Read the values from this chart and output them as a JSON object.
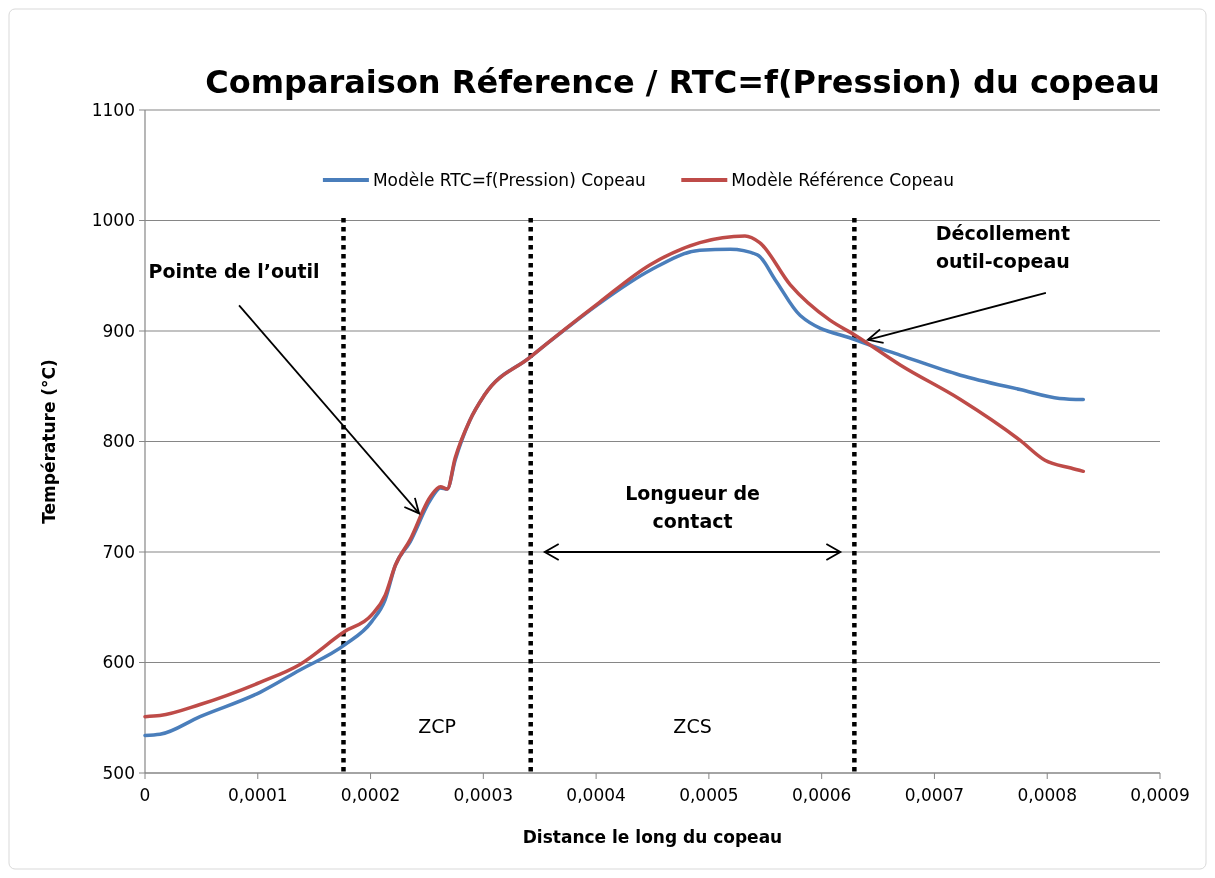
{
  "chart_data": {
    "type": "line",
    "title": "Comparaison Réference / RTC=f(Pression) du copeau",
    "xlabel": "Distance le long du copeau",
    "ylabel": "Température (°C)",
    "xlim": [
      0,
      0.0009
    ],
    "xticks": [
      0,
      {
        "value": 0.0001,
        "label": "0,0001"
      },
      {
        "value": 0.0002,
        "label": "0,0002"
      },
      {
        "value": 0.0003,
        "label": "0,0003"
      },
      {
        "value": 0.0004,
        "label": "0,0004"
      },
      {
        "value": 0.0005,
        "label": "0,0005"
      },
      {
        "value": 0.0006,
        "label": "0,0006"
      },
      {
        "value": 0.0007,
        "label": "0,0007"
      },
      {
        "value": 0.0008,
        "label": "0,0008"
      },
      {
        "value": 0.0009,
        "label": "0,0009"
      }
    ],
    "ylim": [
      500,
      1100
    ],
    "yticks": [
      500,
      600,
      700,
      800,
      900,
      1000,
      1100
    ],
    "grid": "y",
    "legend": "top",
    "line_style": "solid",
    "marker": "none",
    "series": [
      {
        "name": "Modèle RTC=f(Pression) Copeau",
        "color": "#4a7ebb",
        "x": [
          0,
          1.33e-05,
          4.88e-05,
          0.000102,
          0.000137,
          0.000177,
          0.000201,
          0.000213,
          0.000222,
          0.000235,
          0.000253,
          0.000262,
          0.000268,
          0.000275,
          0.000288,
          0.000301,
          0.000341,
          0.000372,
          0.000403,
          0.000448,
          0.000492,
          0.000519,
          0.000543,
          0.000559,
          0.000581,
          0.00063,
          0.00067,
          0.000723,
          0.000776,
          0.000811,
          0.000832
        ],
        "values": [
          534,
          535,
          551,
          573,
          593,
          616,
          637,
          657,
          688,
          709,
          747,
          758,
          757,
          783,
          819,
          842,
          876,
          901,
          925,
          955,
          973,
          974,
          969,
          946,
          914,
          892,
          878,
          860,
          847,
          839,
          838
        ]
      },
      {
        "name": "Modèle Référence Copeau",
        "color": "#be4b48",
        "x": [
          0,
          1.33e-05,
          4.88e-05,
          0.000102,
          0.000137,
          0.000177,
          0.000201,
          0.000213,
          0.000222,
          0.000235,
          0.000253,
          0.000262,
          0.000268,
          0.000275,
          0.000288,
          0.000301,
          0.000341,
          0.000403,
          0.000448,
          0.000492,
          0.000532,
          0.000545,
          0.000572,
          0.000607,
          0.00063,
          0.00067,
          0.000723,
          0.000776,
          0.000798,
          0.000821,
          0.000832
        ],
        "values": [
          551,
          552,
          562,
          582,
          598,
          628,
          643,
          661,
          688,
          711,
          750,
          759,
          757,
          785,
          819,
          842,
          876,
          926,
          960,
          980,
          986,
          980,
          942,
          910,
          896,
          869,
          838,
          801,
          783,
          776,
          773
        ]
      }
    ],
    "ref_lines": [
      {
        "axis": "x",
        "value": 0.000176,
        "color": "#000000",
        "line_style": "dotted"
      },
      {
        "axis": "x",
        "value": 0.000342,
        "color": "#000000",
        "line_style": "dotted"
      },
      {
        "axis": "x",
        "value": 0.000629,
        "color": "#000000",
        "line_style": "dotted"
      }
    ],
    "annotations": [
      {
        "text": "Pointe de l’outil",
        "x": 0.000243,
        "y": 735
      },
      {
        "text": "Décollement outil-copeau",
        "x": 0.000641,
        "y": 892
      },
      "Longueur de contact",
      "ZCP",
      "ZCS"
    ]
  }
}
